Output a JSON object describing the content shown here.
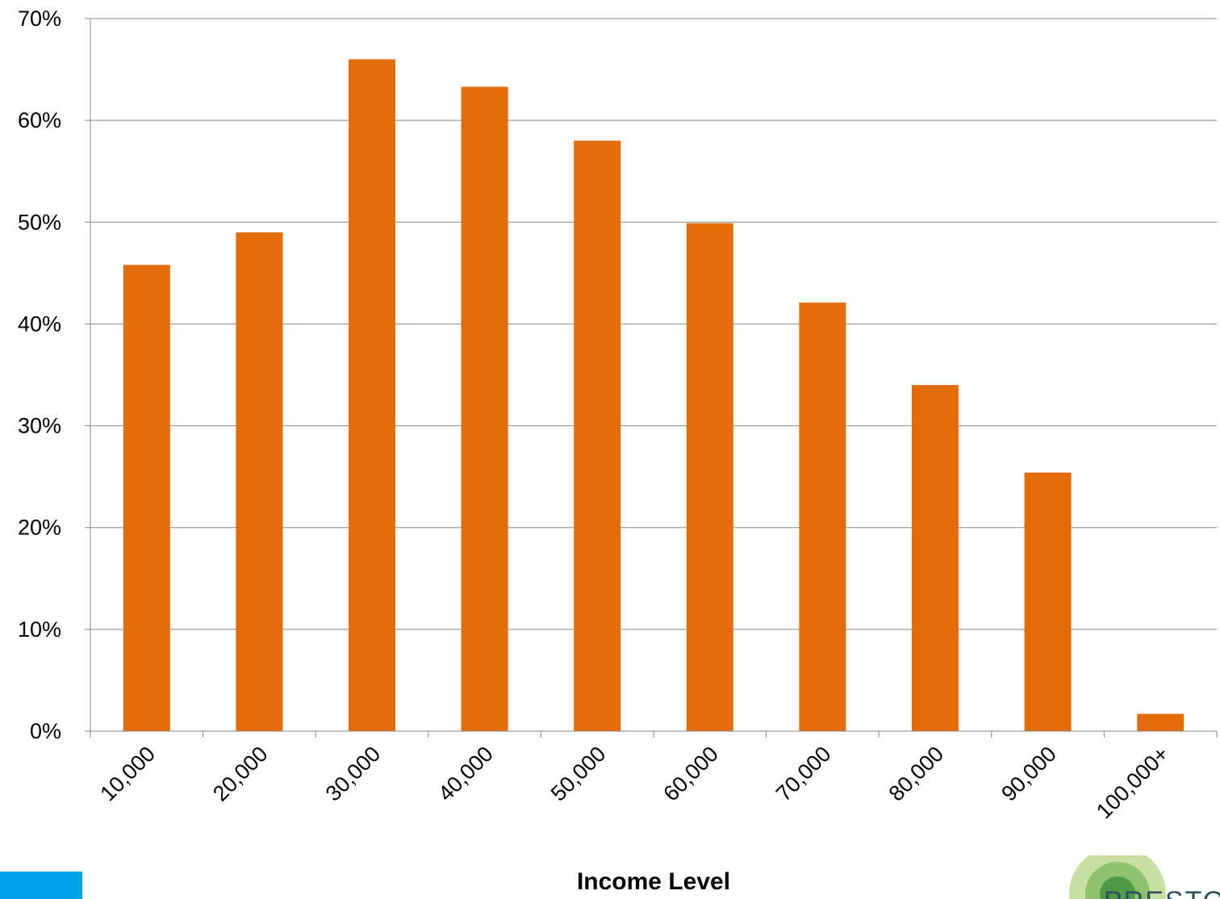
{
  "chart_data": {
    "type": "bar",
    "categories": [
      "10,000",
      "20,000",
      "30,000",
      "40,000",
      "50,000",
      "60,000",
      "70,000",
      "80,000",
      "90,000",
      "100,000+"
    ],
    "values": [
      45.8,
      49.0,
      66.0,
      63.3,
      58.0,
      49.9,
      42.1,
      34.0,
      25.4,
      1.7
    ],
    "xlabel": "Income Level",
    "ylabel": "",
    "ylim": [
      0,
      70
    ],
    "yticks": [
      0,
      10,
      20,
      30,
      40,
      50,
      60,
      70
    ],
    "ytick_labels": [
      "0%",
      "10%",
      "20%",
      "30%",
      "40%",
      "50%",
      "60%",
      "70%"
    ],
    "grid": true,
    "legend": "none",
    "bar_color": "#E36C0A",
    "gridline_color": "#868686"
  },
  "decor": {
    "corner_tab_color": "#00A2E8",
    "logo_text": "PRESTO",
    "logo_colors": [
      "#C7DFA0",
      "#8DC26F",
      "#4E9A47"
    ]
  }
}
